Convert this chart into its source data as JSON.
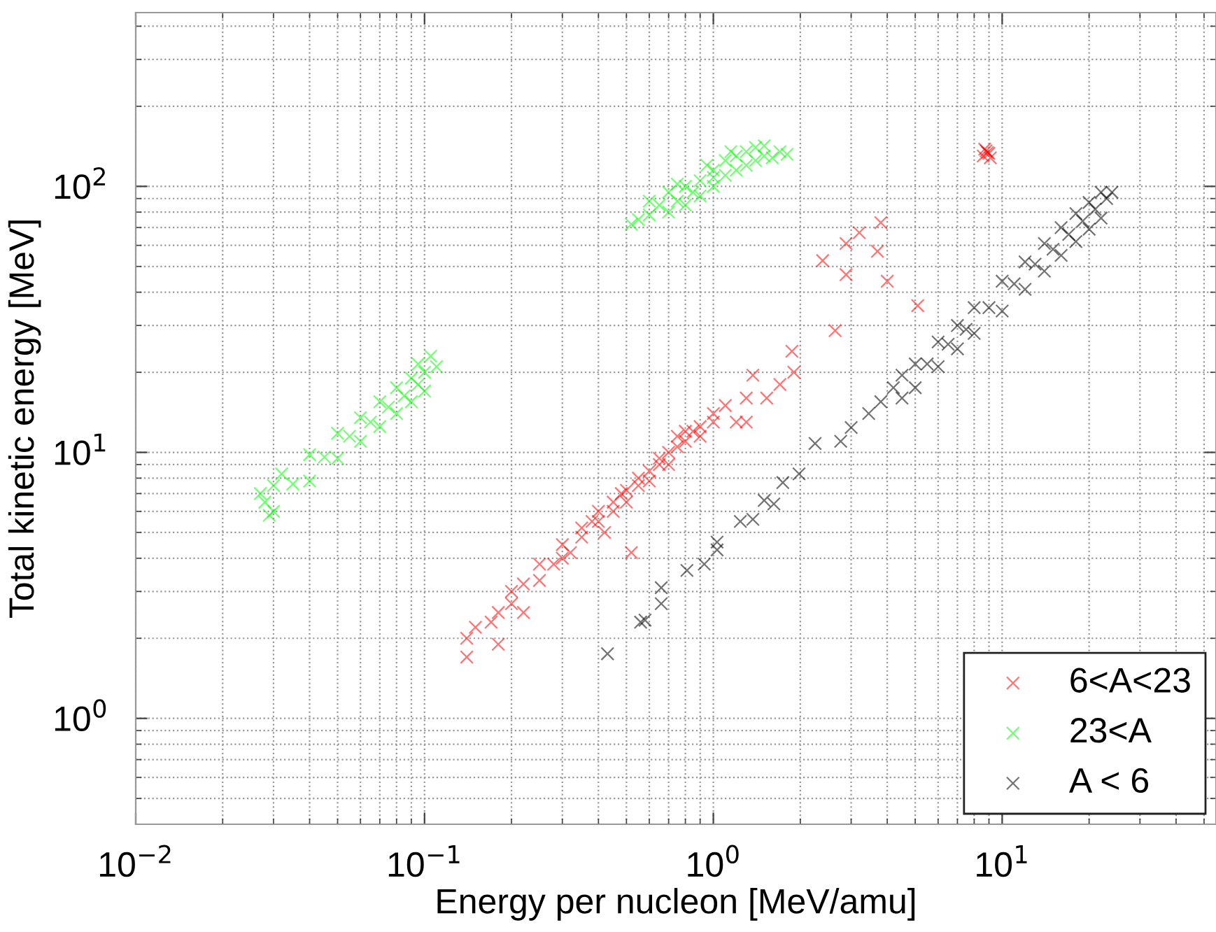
{
  "chart_data": {
    "type": "scatter",
    "xlabel": "Energy per nucleon [MeV/amu]",
    "ylabel": "Total kinetic energy [MeV]",
    "log": "xy",
    "xlim": [
      0.01,
      55
    ],
    "ylim": [
      0.4,
      450
    ],
    "xticks": [
      {
        "value": 0.01,
        "label": "10$^{−2}$"
      },
      {
        "value": 0.1,
        "label": "10$^{−1}$"
      },
      {
        "value": 1,
        "label": "10$^{0}$"
      },
      {
        "value": 10,
        "label": "10$^{1}$"
      }
    ],
    "yticks": [
      {
        "value": 1,
        "label": "10$^{0}$"
      },
      {
        "value": 10,
        "label": "10$^{1}$"
      },
      {
        "value": 100,
        "label": "10$^{2}$"
      }
    ],
    "grid": true,
    "legend": "bottom right",
    "marker": "cross",
    "series": [
      {
        "name": "6<A<23",
        "color": "#ff0000",
        "x": [
          0.14,
          0.14,
          0.15,
          0.17,
          0.18,
          0.18,
          0.2,
          0.2,
          0.22,
          0.22,
          0.25,
          0.25,
          0.28,
          0.3,
          0.3,
          0.32,
          0.35,
          0.35,
          0.38,
          0.4,
          0.4,
          0.42,
          0.45,
          0.45,
          0.48,
          0.5,
          0.5,
          0.55,
          0.55,
          0.6,
          0.6,
          0.65,
          0.65,
          0.7,
          0.7,
          0.75,
          0.75,
          0.8,
          0.8,
          0.85,
          0.9,
          0.9,
          1.0,
          1.0,
          1.1,
          1.2,
          1.3,
          1.3,
          1.37,
          1.53,
          1.7,
          1.87,
          1.9,
          0.52,
          2.39,
          2.88,
          2.88,
          3.2,
          3.7,
          3.8,
          4.0,
          5.1,
          2.64,
          8.6,
          8.8,
          9.0,
          8.7,
          9.1,
          8.9
        ],
        "values": [
          2.0,
          1.7,
          2.2,
          2.3,
          1.9,
          2.5,
          2.7,
          3.0,
          2.5,
          3.2,
          3.3,
          3.8,
          3.8,
          4.0,
          4.5,
          4.2,
          4.8,
          5.2,
          5.5,
          5.5,
          6.0,
          5.0,
          6.5,
          6.0,
          7.0,
          7.2,
          6.5,
          7.5,
          8.0,
          8.5,
          7.8,
          9.0,
          9.5,
          10,
          9.0,
          10.5,
          11.5,
          11,
          12,
          12,
          12.5,
          11.5,
          13,
          14,
          15,
          13,
          13,
          16,
          19.5,
          16,
          18,
          24,
          20,
          4.2,
          52.6,
          61,
          46.6,
          67,
          57,
          73,
          44,
          35.6,
          28.7,
          130,
          136,
          133,
          138,
          128,
          134
        ]
      },
      {
        "name": "23<A",
        "color": "#00ff00",
        "x": [
          0.03,
          0.04,
          0.05,
          0.06,
          0.07,
          0.08,
          0.09,
          0.1,
          0.03,
          0.04,
          0.05,
          0.06,
          0.07,
          0.08,
          0.09,
          0.1,
          0.035,
          0.045,
          0.055,
          0.065,
          0.075,
          0.085,
          0.095,
          0.028,
          0.029,
          0.11,
          0.105,
          0.095,
          0.032,
          0.027,
          0.52,
          0.55,
          0.6,
          0.65,
          0.7,
          0.7,
          0.75,
          0.8,
          0.8,
          0.85,
          0.9,
          0.9,
          1.0,
          1.0,
          1.0,
          1.1,
          1.1,
          1.2,
          1.2,
          1.3,
          1.3,
          1.4,
          1.4,
          1.5,
          1.6,
          1.7,
          1.8,
          0.75,
          0.95,
          1.15,
          0.6,
          1.5
        ],
        "values": [
          6.0,
          7.8,
          9.5,
          11,
          12.5,
          14,
          15.5,
          17,
          7.5,
          9.8,
          11.8,
          13.5,
          15.5,
          17.5,
          19,
          20,
          7.6,
          9.6,
          11.5,
          13,
          14.8,
          16.3,
          18,
          6.5,
          5.8,
          21,
          23,
          21.5,
          8.3,
          7.0,
          72,
          75,
          78,
          85,
          80,
          95,
          88,
          100,
          85,
          95,
          105,
          92,
          100,
          115,
          108,
          110,
          125,
          115,
          130,
          120,
          135,
          125,
          140,
          130,
          128,
          135,
          132,
          102,
          120,
          135,
          88,
          142
        ]
      },
      {
        "name": "A < 6",
        "color": "#000000",
        "x": [
          0.43,
          0.58,
          0.56,
          0.66,
          0.66,
          0.81,
          0.93,
          1.03,
          1.03,
          1.24,
          1.37,
          1.5,
          1.62,
          1.74,
          1.98,
          2.25,
          2.76,
          3.0,
          3.45,
          3.8,
          4.2,
          4.5,
          4.5,
          5,
          5,
          6,
          6,
          7,
          7,
          8,
          8,
          10,
          10,
          12,
          12,
          14,
          14,
          16,
          16,
          18,
          18,
          20,
          20,
          22,
          22,
          24,
          5.5,
          6.5,
          7.5,
          9,
          11,
          13,
          15,
          17,
          19,
          21,
          23
        ],
        "values": [
          1.75,
          2.34,
          2.3,
          3.1,
          2.7,
          3.6,
          3.8,
          4.3,
          4.6,
          5.5,
          5.6,
          6.6,
          6.4,
          7.7,
          8.3,
          10.8,
          11,
          12.4,
          14,
          15.5,
          17.5,
          16,
          19.5,
          17.5,
          21.5,
          21,
          26,
          24.5,
          30,
          28,
          35,
          34,
          44,
          41,
          52,
          48,
          61,
          55,
          70,
          62,
          79,
          69,
          87,
          76,
          95,
          95,
          21.5,
          25.5,
          29,
          35,
          43,
          51,
          58,
          66,
          74,
          82,
          90
        ]
      }
    ]
  }
}
